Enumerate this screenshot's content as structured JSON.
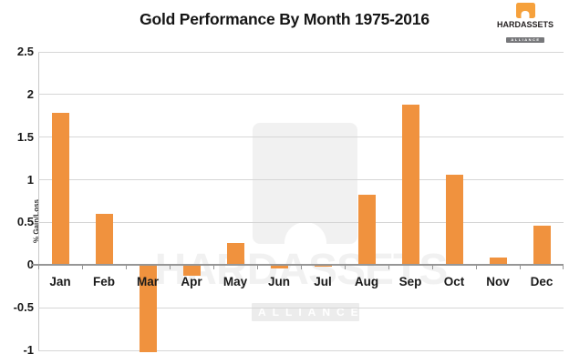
{
  "title": "Gold Performance By Month 1975-2016",
  "logo": {
    "brand": "HARDASSETS",
    "alliance": "ALLIANCE",
    "mark_color": "#F6A13C",
    "alliance_bg": "#77787b"
  },
  "watermark": {
    "brand": "HARDASSETS",
    "alliance": "ALLIANCE"
  },
  "chart_data": {
    "type": "bar",
    "title": "Gold Performance By Month 1975-2016",
    "categories": [
      "Jan",
      "Feb",
      "Mar",
      "Apr",
      "May",
      "Jun",
      "Jul",
      "Aug",
      "Sep",
      "Oct",
      "Nov",
      "Dec"
    ],
    "values": [
      1.79,
      0.6,
      -1.02,
      -0.12,
      0.26,
      -0.04,
      -0.02,
      0.83,
      1.88,
      1.06,
      0.09,
      0.46
    ],
    "xlabel": "",
    "ylabel": "% Gain/Loss",
    "ylim": [
      -1,
      2.5
    ],
    "yticks": [
      2.5,
      2,
      1.5,
      1,
      0.5,
      0,
      -0.5,
      -1
    ],
    "grid": true,
    "legend": "none",
    "bar_color": "#F0923E",
    "gridline_color": "#d6d6d6",
    "zero_line_color": "#969696"
  }
}
